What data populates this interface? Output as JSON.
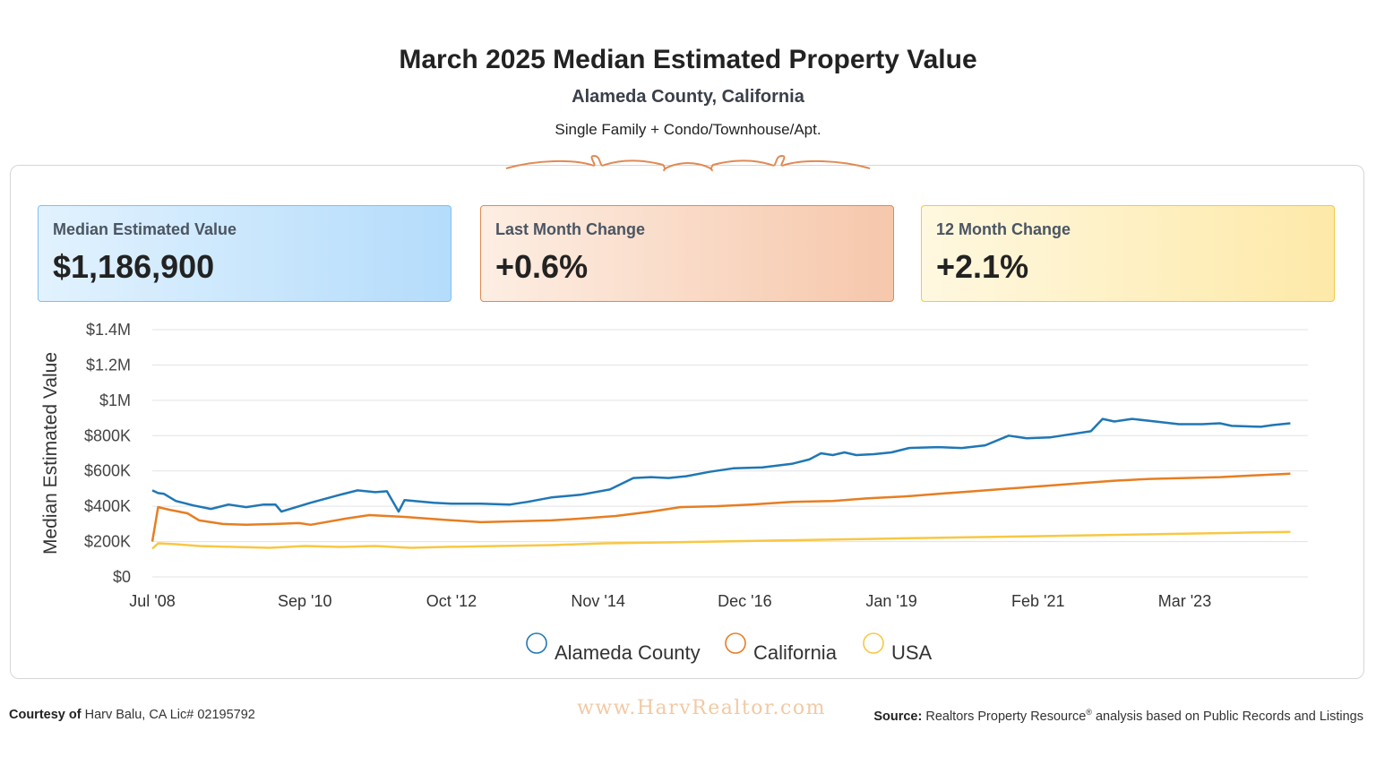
{
  "header": {
    "title": "March 2025 Median Estimated Property Value",
    "subtitle": "Alameda County, California",
    "subtitle2": "Single Family + Condo/Townhouse/Apt."
  },
  "cards": [
    {
      "label": "Median Estimated Value",
      "value": "$1,186,900"
    },
    {
      "label": "Last Month Change",
      "value": "+0.6%"
    },
    {
      "label": "12 Month Change",
      "value": "+2.1%"
    }
  ],
  "chart_data": {
    "type": "line",
    "title": "",
    "xlabel": "",
    "ylabel": "Median Estimated Value",
    "x_range": [
      "2008-07",
      "2024-12"
    ],
    "ylim": [
      0,
      1400000
    ],
    "y_ticks": [
      0,
      200000,
      400000,
      600000,
      800000,
      1000000,
      1200000,
      1400000
    ],
    "y_tick_labels": [
      "$0",
      "$200K",
      "$400K",
      "$600K",
      "$800K",
      "$1M",
      "$1.2M",
      "$1.4M"
    ],
    "x_ticks": [
      "2008-07",
      "2010-09",
      "2012-10",
      "2014-11",
      "2016-12",
      "2019-01",
      "2021-02",
      "2023-03"
    ],
    "x_tick_labels": [
      "Jul '08",
      "Sep '10",
      "Oct '12",
      "Nov '14",
      "Dec '16",
      "Jan '19",
      "Feb '21",
      "Mar '23"
    ],
    "grid": true,
    "legend_position": "bottom-center",
    "series": [
      {
        "name": "Alameda County",
        "color": "#1f77b4",
        "points": [
          [
            "2008-07",
            490000
          ],
          [
            "2008-08",
            475000
          ],
          [
            "2008-09",
            470000
          ],
          [
            "2008-11",
            430000
          ],
          [
            "2009-02",
            405000
          ],
          [
            "2009-05",
            385000
          ],
          [
            "2009-08",
            410000
          ],
          [
            "2009-11",
            395000
          ],
          [
            "2010-02",
            410000
          ],
          [
            "2010-04",
            410000
          ],
          [
            "2010-05",
            370000
          ],
          [
            "2010-10",
            420000
          ],
          [
            "2011-03",
            465000
          ],
          [
            "2011-06",
            490000
          ],
          [
            "2011-09",
            480000
          ],
          [
            "2011-11",
            485000
          ],
          [
            "2012-01",
            370000
          ],
          [
            "2012-02",
            435000
          ],
          [
            "2012-07",
            420000
          ],
          [
            "2012-10",
            415000
          ],
          [
            "2013-03",
            415000
          ],
          [
            "2013-08",
            410000
          ],
          [
            "2013-11",
            425000
          ],
          [
            "2014-03",
            450000
          ],
          [
            "2014-08",
            465000
          ],
          [
            "2015-01",
            495000
          ],
          [
            "2015-05",
            560000
          ],
          [
            "2015-08",
            565000
          ],
          [
            "2015-11",
            560000
          ],
          [
            "2016-02",
            570000
          ],
          [
            "2016-06",
            595000
          ],
          [
            "2016-10",
            615000
          ],
          [
            "2017-03",
            620000
          ],
          [
            "2017-08",
            640000
          ],
          [
            "2017-11",
            665000
          ],
          [
            "2018-01",
            700000
          ],
          [
            "2018-03",
            690000
          ],
          [
            "2018-05",
            705000
          ],
          [
            "2018-07",
            690000
          ],
          [
            "2018-10",
            695000
          ],
          [
            "2019-01",
            705000
          ],
          [
            "2019-04",
            730000
          ],
          [
            "2019-09",
            735000
          ],
          [
            "2020-01",
            730000
          ],
          [
            "2020-05",
            745000
          ],
          [
            "2020-09",
            800000
          ],
          [
            "2020-12",
            785000
          ],
          [
            "2021-04",
            790000
          ],
          [
            "2021-07",
            805000
          ],
          [
            "2021-11",
            825000
          ],
          [
            "2022-01",
            895000
          ],
          [
            "2022-03",
            880000
          ],
          [
            "2022-06",
            895000
          ],
          [
            "2022-10",
            880000
          ],
          [
            "2023-02",
            865000
          ],
          [
            "2023-06",
            865000
          ],
          [
            "2023-09",
            870000
          ],
          [
            "2023-11",
            855000
          ],
          [
            "2024-04",
            850000
          ],
          [
            "2024-06",
            860000
          ],
          [
            "2024-09",
            870000
          ]
        ]
      },
      {
        "name": "California",
        "color": "#e67e22",
        "points": [
          [
            "2008-07",
            200000
          ],
          [
            "2008-08",
            395000
          ],
          [
            "2008-10",
            380000
          ],
          [
            "2009-01",
            360000
          ],
          [
            "2009-03",
            320000
          ],
          [
            "2009-07",
            300000
          ],
          [
            "2009-11",
            295000
          ],
          [
            "2010-04",
            300000
          ],
          [
            "2010-08",
            305000
          ],
          [
            "2010-10",
            295000
          ],
          [
            "2011-04",
            330000
          ],
          [
            "2011-08",
            350000
          ],
          [
            "2012-02",
            340000
          ],
          [
            "2012-08",
            325000
          ],
          [
            "2013-03",
            310000
          ],
          [
            "2013-09",
            315000
          ],
          [
            "2014-03",
            320000
          ],
          [
            "2014-08",
            330000
          ],
          [
            "2015-02",
            345000
          ],
          [
            "2015-08",
            370000
          ],
          [
            "2016-01",
            395000
          ],
          [
            "2016-07",
            400000
          ],
          [
            "2017-01",
            410000
          ],
          [
            "2017-08",
            425000
          ],
          [
            "2018-03",
            430000
          ],
          [
            "2018-09",
            445000
          ],
          [
            "2019-03",
            455000
          ],
          [
            "2019-09",
            470000
          ],
          [
            "2020-03",
            485000
          ],
          [
            "2020-09",
            500000
          ],
          [
            "2021-03",
            515000
          ],
          [
            "2021-09",
            530000
          ],
          [
            "2022-03",
            545000
          ],
          [
            "2022-09",
            555000
          ],
          [
            "2023-03",
            560000
          ],
          [
            "2023-09",
            565000
          ],
          [
            "2024-03",
            575000
          ],
          [
            "2024-09",
            585000
          ]
        ]
      },
      {
        "name": "USA",
        "color": "#f7c843",
        "points": [
          [
            "2008-07",
            160000
          ],
          [
            "2008-08",
            190000
          ],
          [
            "2008-11",
            185000
          ],
          [
            "2009-03",
            175000
          ],
          [
            "2009-09",
            170000
          ],
          [
            "2010-03",
            165000
          ],
          [
            "2010-09",
            175000
          ],
          [
            "2011-03",
            170000
          ],
          [
            "2011-09",
            175000
          ],
          [
            "2012-03",
            165000
          ],
          [
            "2012-09",
            170000
          ],
          [
            "2013-06",
            175000
          ],
          [
            "2014-03",
            180000
          ],
          [
            "2014-12",
            190000
          ],
          [
            "2015-09",
            195000
          ],
          [
            "2016-06",
            200000
          ],
          [
            "2017-03",
            205000
          ],
          [
            "2017-12",
            210000
          ],
          [
            "2018-09",
            215000
          ],
          [
            "2019-06",
            220000
          ],
          [
            "2020-03",
            225000
          ],
          [
            "2020-12",
            230000
          ],
          [
            "2021-09",
            235000
          ],
          [
            "2022-06",
            240000
          ],
          [
            "2023-03",
            245000
          ],
          [
            "2023-12",
            250000
          ],
          [
            "2024-09",
            255000
          ]
        ]
      }
    ]
  },
  "footer": {
    "courtesy_label": "Courtesy of",
    "courtesy_text": "Harv Balu, CA Lic# 02195792",
    "website": "www.HarvRealtor.com",
    "source_label": "Source:",
    "source_text": "Realtors Property Resource",
    "source_reg": "®",
    "source_tail": " analysis based on Public Records and Listings"
  }
}
